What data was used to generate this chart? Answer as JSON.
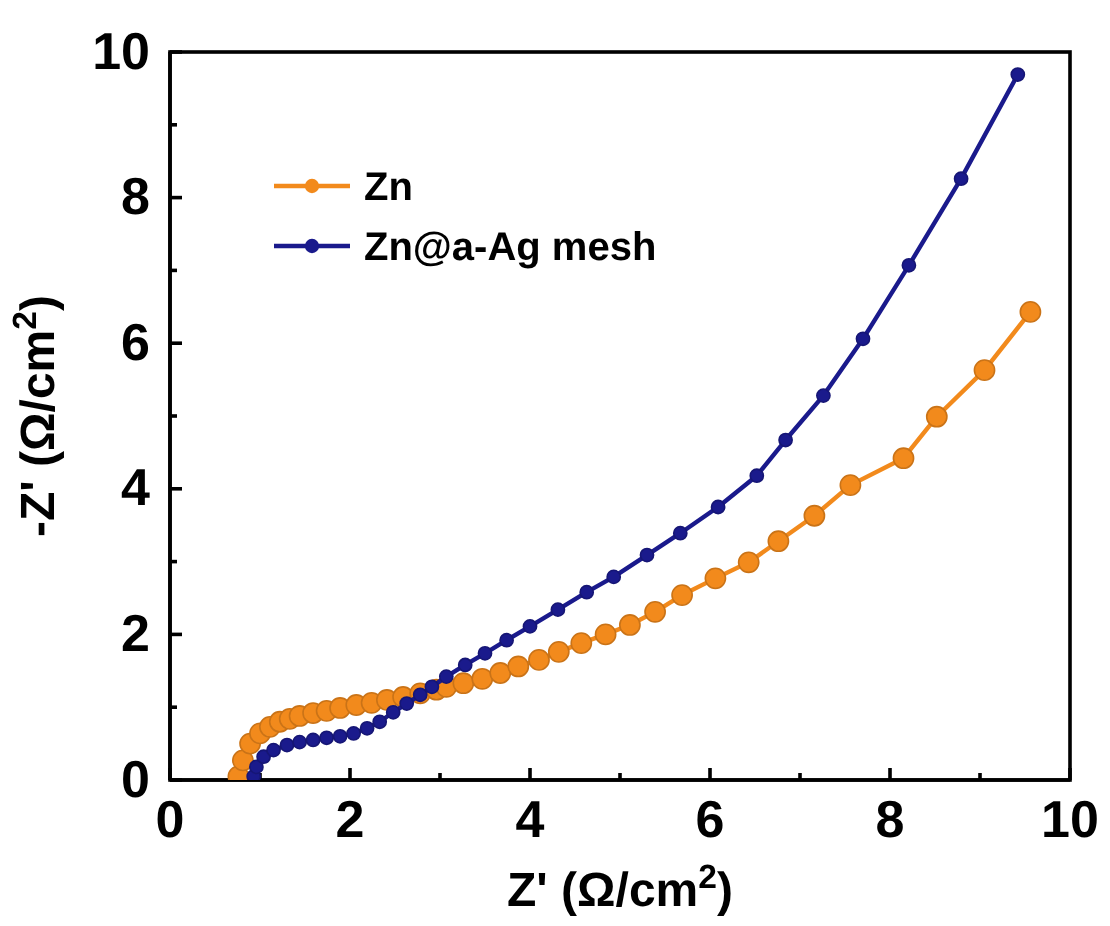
{
  "chart_data": {
    "type": "line",
    "xlabel": "Z' (Ω/cm$^{2}$)",
    "ylabel": "-Z' (Ω/cm$^{2}$)",
    "xlim": [
      0,
      10
    ],
    "ylim": [
      0,
      10
    ],
    "xticks": [
      0,
      {
        "value": 1,
        "label": null
      },
      2,
      {
        "value": 3,
        "label": null
      },
      4,
      {
        "value": 5,
        "label": null
      },
      6,
      {
        "value": 7,
        "label": null
      },
      8,
      {
        "value": 9,
        "label": null
      },
      10
    ],
    "yticks": [
      0,
      {
        "value": 1,
        "label": null
      },
      2,
      {
        "value": 3,
        "label": null
      },
      4,
      {
        "value": 5,
        "label": null
      },
      6,
      {
        "value": 7,
        "label": null
      },
      8,
      {
        "value": 9,
        "label": null
      },
      10
    ],
    "grid": false,
    "legend": "top left",
    "marker": "circle",
    "line_style": "solid",
    "series": [
      {
        "name": "Zn",
        "color": "#f28a1c",
        "x": [
          0.76,
          0.81,
          0.89,
          1.0,
          1.11,
          1.22,
          1.33,
          1.44,
          1.59,
          1.74,
          1.89,
          2.07,
          2.24,
          2.41,
          2.59,
          2.78,
          2.96,
          3.07,
          3.26,
          3.47,
          3.67,
          3.87,
          4.1,
          4.32,
          4.57,
          4.84,
          5.11,
          5.39,
          5.69,
          6.06,
          6.43,
          6.76,
          7.16,
          7.56,
          8.15,
          8.52,
          9.05,
          9.56
        ],
        "values": [
          0.05,
          0.27,
          0.5,
          0.64,
          0.73,
          0.8,
          0.84,
          0.88,
          0.92,
          0.95,
          0.99,
          1.03,
          1.06,
          1.1,
          1.14,
          1.19,
          1.24,
          1.28,
          1.33,
          1.39,
          1.47,
          1.56,
          1.65,
          1.76,
          1.88,
          2.0,
          2.13,
          2.31,
          2.54,
          2.77,
          2.99,
          3.28,
          3.63,
          4.05,
          4.42,
          4.99,
          5.63,
          6.43
        ]
      },
      {
        "name": "Zn@a-Ag mesh",
        "color": "#1a1a8c",
        "x": [
          0.93,
          0.96,
          1.04,
          1.15,
          1.3,
          1.44,
          1.59,
          1.74,
          1.89,
          2.04,
          2.19,
          2.33,
          2.48,
          2.63,
          2.78,
          2.91,
          3.07,
          3.28,
          3.5,
          3.74,
          4.0,
          4.31,
          4.63,
          4.93,
          5.3,
          5.67,
          6.09,
          6.52,
          6.84,
          7.26,
          7.7,
          8.21,
          8.79,
          9.42
        ],
        "values": [
          0.05,
          0.18,
          0.32,
          0.41,
          0.48,
          0.52,
          0.55,
          0.58,
          0.6,
          0.64,
          0.71,
          0.8,
          0.93,
          1.05,
          1.17,
          1.28,
          1.42,
          1.58,
          1.74,
          1.92,
          2.11,
          2.34,
          2.58,
          2.79,
          3.09,
          3.39,
          3.75,
          4.18,
          4.67,
          5.28,
          6.06,
          7.07,
          8.26,
          9.69
        ]
      }
    ]
  }
}
